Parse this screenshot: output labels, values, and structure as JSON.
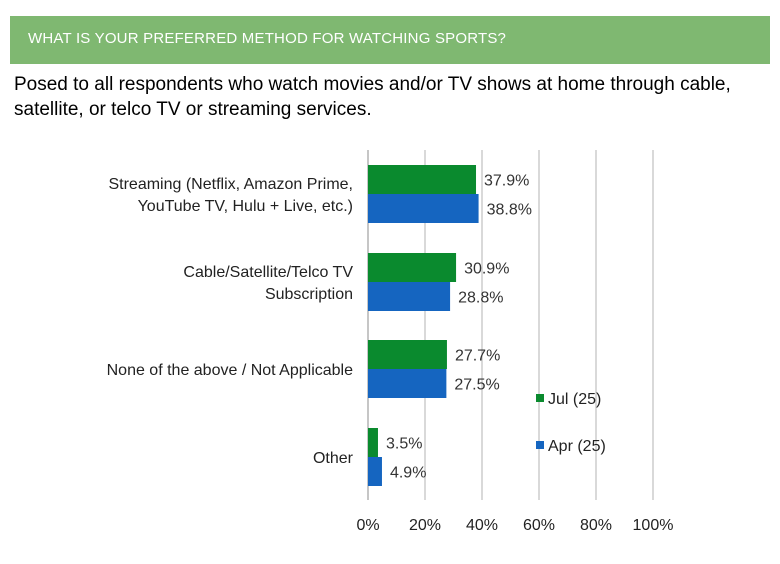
{
  "header": {
    "title": "WHAT IS YOUR PREFERRED METHOD FOR WATCHING SPORTS?"
  },
  "subtitle": "Posed to all respondents who watch movies and/or TV shows at home through cable, satellite, or telco TV or streaming services.",
  "colors": {
    "header_bg": "#7fb871",
    "jul": "#0a8a2e",
    "apr": "#1565c0",
    "grid": "#b3b3b3"
  },
  "chart_data": {
    "type": "bar",
    "orientation": "horizontal",
    "categories": [
      [
        "Streaming (Netflix, Amazon Prime,",
        "YouTube TV, Hulu + Live, etc.)"
      ],
      [
        "Cable/Satellite/Telco TV",
        "Subscription"
      ],
      [
        "None of the above / Not Applicable"
      ],
      [
        "Other"
      ]
    ],
    "series": [
      {
        "name": "Jul (25)",
        "color": "#0a8a2e",
        "values": [
          37.9,
          30.9,
          27.7,
          3.5
        ]
      },
      {
        "name": "Apr (25)",
        "color": "#1565c0",
        "values": [
          38.8,
          28.8,
          27.5,
          4.9
        ]
      }
    ],
    "value_labels": [
      [
        "37.9%",
        "30.9%",
        "27.7%",
        "3.5%"
      ],
      [
        "38.8%",
        "28.8%",
        "27.5%",
        "4.9%"
      ]
    ],
    "xlim": [
      0,
      100
    ],
    "xticks": [
      "0%",
      "20%",
      "40%",
      "60%",
      "80%",
      "100%"
    ],
    "grid": true,
    "legend_position": "right"
  }
}
